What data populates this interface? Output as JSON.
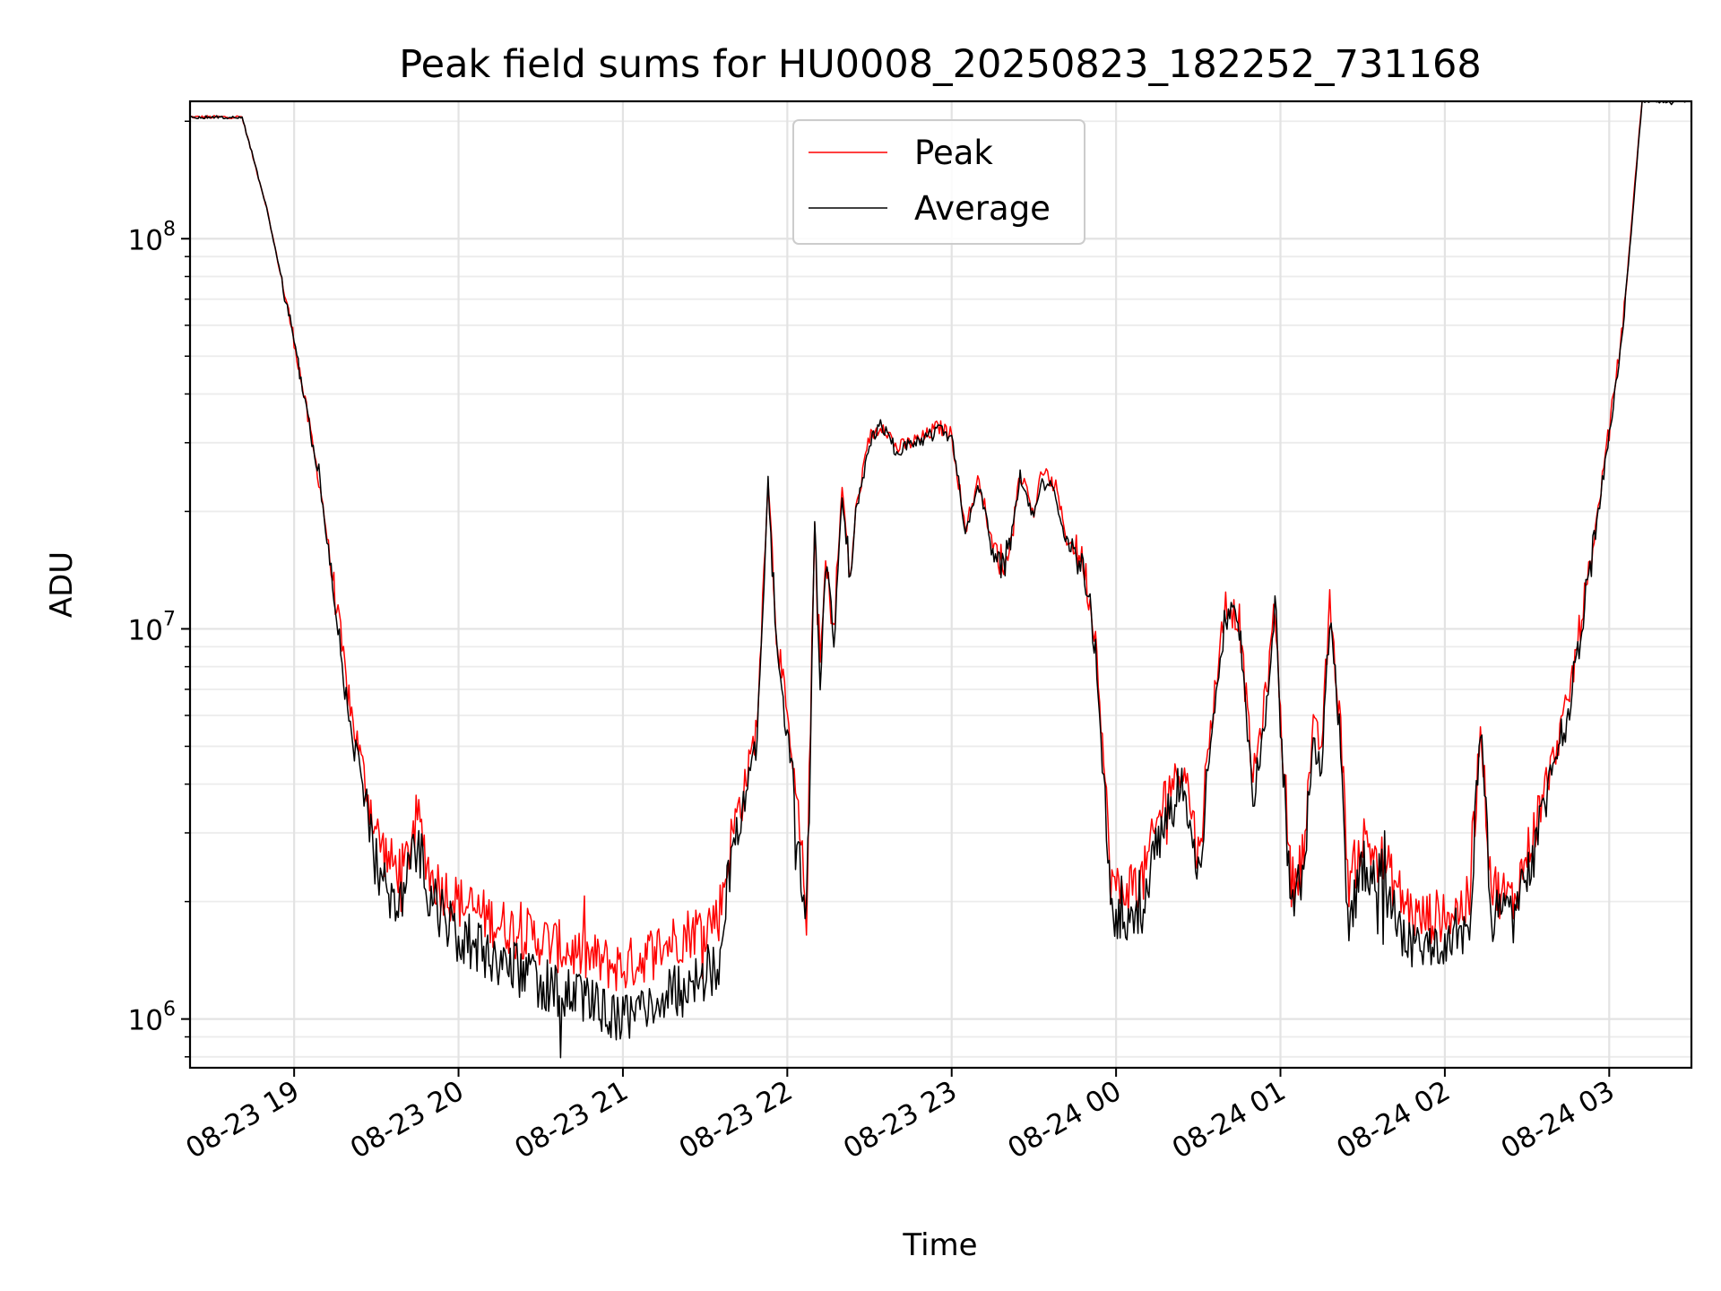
{
  "chart_data": {
    "type": "line",
    "title": "Peak field sums for HU0008_20250823_182252_731168",
    "xlabel": "Time",
    "ylabel": "ADU",
    "yscale": "log",
    "xlim": [
      "2025-08-23 18:22",
      "2025-08-24 03:30"
    ],
    "ylim": [
      750000,
      225000000
    ],
    "grid": true,
    "legend": "top-center",
    "x_ticks": [
      "08-23 19",
      "08-23 20",
      "08-23 21",
      "08-23 22",
      "08-23 23",
      "08-24 00",
      "08-24 01",
      "08-24 02",
      "08-24 03"
    ],
    "y_ticks": [
      {
        "value": 1000000,
        "base": "10",
        "exp": "6"
      },
      {
        "value": 10000000,
        "base": "10",
        "exp": "7"
      },
      {
        "value": 100000000,
        "base": "10",
        "exp": "8"
      }
    ],
    "x": [
      "2025-08-23 18:22",
      "2025-08-23 18:41",
      "2025-08-23 18:50",
      "2025-08-23 19:00",
      "2025-08-23 19:10",
      "2025-08-23 19:15",
      "2025-08-23 19:20",
      "2025-08-23 19:25",
      "2025-08-23 19:30",
      "2025-08-23 19:35",
      "2025-08-23 19:40",
      "2025-08-23 19:45",
      "2025-08-23 19:50",
      "2025-08-23 20:00",
      "2025-08-23 20:15",
      "2025-08-23 20:30",
      "2025-08-23 20:45",
      "2025-08-23 21:00",
      "2025-08-23 21:15",
      "2025-08-23 21:30",
      "2025-08-23 21:35",
      "2025-08-23 21:40",
      "2025-08-23 21:45",
      "2025-08-23 21:49",
      "2025-08-23 21:53",
      "2025-08-23 21:56",
      "2025-08-23 22:00",
      "2025-08-23 22:04",
      "2025-08-23 22:07",
      "2025-08-23 22:10",
      "2025-08-23 22:12",
      "2025-08-23 22:14",
      "2025-08-23 22:17",
      "2025-08-23 22:20",
      "2025-08-23 22:23",
      "2025-08-23 22:25",
      "2025-08-23 22:30",
      "2025-08-23 22:35",
      "2025-08-23 22:40",
      "2025-08-23 22:45",
      "2025-08-23 22:50",
      "2025-08-23 22:55",
      "2025-08-23 23:00",
      "2025-08-23 23:05",
      "2025-08-23 23:10",
      "2025-08-23 23:15",
      "2025-08-23 23:20",
      "2025-08-23 23:25",
      "2025-08-23 23:30",
      "2025-08-23 23:33",
      "2025-08-23 23:38",
      "2025-08-23 23:42",
      "2025-08-23 23:48",
      "2025-08-23 23:53",
      "2025-08-23 23:58",
      "2025-08-24 00:01",
      "2025-08-24 00:05",
      "2025-08-24 00:10",
      "2025-08-24 00:18",
      "2025-08-24 00:25",
      "2025-08-24 00:30",
      "2025-08-24 00:35",
      "2025-08-24 00:40",
      "2025-08-24 00:45",
      "2025-08-24 00:50",
      "2025-08-24 00:55",
      "2025-08-24 00:58",
      "2025-08-24 01:00",
      "2025-08-24 01:04",
      "2025-08-24 01:08",
      "2025-08-24 01:12",
      "2025-08-24 01:15",
      "2025-08-24 01:18",
      "2025-08-24 01:22",
      "2025-08-24 01:25",
      "2025-08-24 01:30",
      "2025-08-24 01:38",
      "2025-08-24 01:45",
      "2025-08-24 01:50",
      "2025-08-24 02:00",
      "2025-08-24 02:05",
      "2025-08-24 02:09",
      "2025-08-24 02:13",
      "2025-08-24 02:17",
      "2025-08-24 02:25",
      "2025-08-24 02:35",
      "2025-08-24 02:45",
      "2025-08-24 02:55",
      "2025-08-24 03:05",
      "2025-08-24 03:12",
      "2025-08-24 03:30"
    ],
    "series": [
      {
        "name": "Peak",
        "color": "#ff0000",
        "values": [
          205000000,
          205000000,
          120000000,
          55000000,
          22000000,
          12000000,
          6500000,
          4400000,
          3000000,
          2500000,
          2400000,
          3300000,
          2300000,
          2000000,
          1750000,
          1600000,
          1450000,
          1350000,
          1550000,
          1750000,
          1850000,
          3000000,
          4100000,
          5700000,
          24500000,
          10000000,
          5800000,
          3200000,
          1900000,
          18500000,
          8000000,
          14500000,
          10000000,
          23000000,
          13500000,
          20000000,
          31000000,
          33500000,
          29000000,
          30000000,
          31000000,
          33000000,
          31500000,
          18000000,
          24500000,
          16000000,
          14500000,
          25000000,
          20000000,
          25500000,
          23000000,
          17000000,
          15000000,
          9000000,
          2300000,
          2100000,
          2200000,
          2300000,
          3800000,
          4500000,
          2600000,
          6000000,
          11800000,
          10500000,
          4100000,
          7000000,
          11500000,
          6000000,
          2200000,
          2600000,
          5500000,
          5000000,
          11500000,
          5500000,
          2200000,
          2900000,
          2500000,
          2000000,
          1800000,
          1850000,
          1900000,
          2000000,
          5800000,
          2200000,
          2000000,
          3500000,
          6500000,
          18000000,
          60000000,
          230000000,
          230000000
        ]
      },
      {
        "name": "Average",
        "color": "#000000",
        "values": [
          205000000,
          205000000,
          120000000,
          55000000,
          22000000,
          11500000,
          6000000,
          3800000,
          2500000,
          2100000,
          2050000,
          2900000,
          2000000,
          1650000,
          1400000,
          1250000,
          1100000,
          1000000,
          1150000,
          1300000,
          1400000,
          2800000,
          3800000,
          5300000,
          24000000,
          9500000,
          5300000,
          2900000,
          1700000,
          18000000,
          7500000,
          14000000,
          9500000,
          22500000,
          13000000,
          19500000,
          30500000,
          33000000,
          28500000,
          29500000,
          30500000,
          32500000,
          31000000,
          17500000,
          24000000,
          15500000,
          14000000,
          24500000,
          19500000,
          25000000,
          22500000,
          16500000,
          14500000,
          8500000,
          1900000,
          1800000,
          1850000,
          1900000,
          3400000,
          4000000,
          2300000,
          5500000,
          11000000,
          10000000,
          3700000,
          6500000,
          11000000,
          5500000,
          1900000,
          2300000,
          5000000,
          4500000,
          11000000,
          5000000,
          1800000,
          2500000,
          2200000,
          1650000,
          1550000,
          1600000,
          1650000,
          1750000,
          5400000,
          1850000,
          1750000,
          3100000,
          6000000,
          17500000,
          58000000,
          225000000,
          225000000
        ]
      }
    ]
  }
}
